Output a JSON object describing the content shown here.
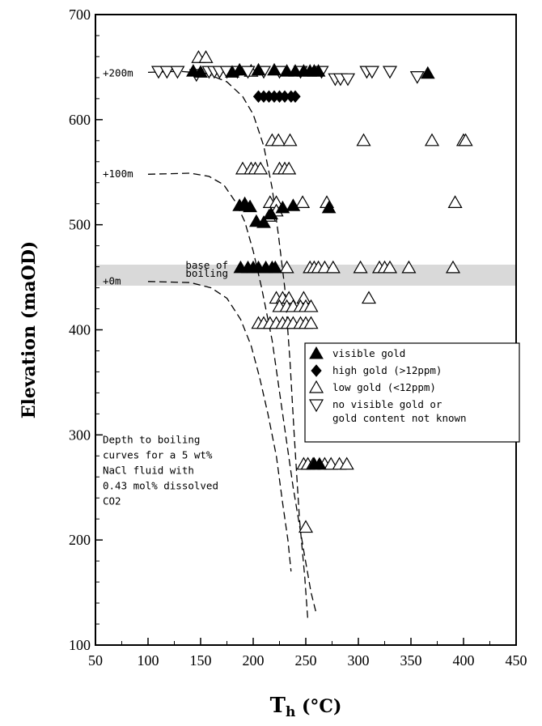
{
  "chart_data": {
    "type": "scatter",
    "xlabel_main": "T",
    "xlabel_sub": "h",
    "xlabel_unit": "(°C)",
    "ylabel": "Elevation (maOD)",
    "xlim": [
      50,
      450
    ],
    "ylim": [
      100,
      700
    ],
    "x_ticks": [
      "50",
      "100",
      "150",
      "200",
      "250",
      "300",
      "350",
      "400",
      "450"
    ],
    "y_ticks": [
      "100",
      "200",
      "300",
      "400",
      "500",
      "600",
      "700"
    ],
    "boiling_band": [
      442,
      462
    ],
    "boiling_band_label": [
      "base of",
      "boiling"
    ],
    "depth_labels": [
      {
        "text": "+200m",
        "elev": 645
      },
      {
        "text": "+100m",
        "elev": 549
      },
      {
        "text": "+0m",
        "elev": 447
      }
    ],
    "legend": [
      {
        "marker": "up-filled",
        "label": "visible gold"
      },
      {
        "marker": "diamond",
        "label": "high gold (>12ppm)"
      },
      {
        "marker": "up-open",
        "label": "low gold (<12ppm)"
      },
      {
        "marker": "down-open",
        "label": "no visible gold or",
        "label2": "gold content not known"
      }
    ],
    "note": [
      "Depth to boiling",
      "curves for a 5 wt%",
      "NaCl fluid with",
      "0.43 mol% dissolved",
      "CO2"
    ],
    "curves": [
      {
        "name": "+200m",
        "points": [
          [
            100,
            645
          ],
          [
            130,
            646
          ],
          [
            155,
            644
          ],
          [
            175,
            636
          ],
          [
            190,
            622
          ],
          [
            200,
            605
          ],
          [
            210,
            575
          ],
          [
            218,
            535
          ],
          [
            224,
            490
          ],
          [
            230,
            440
          ],
          [
            235,
            370
          ],
          [
            239,
            300
          ],
          [
            244,
            220
          ],
          [
            249,
            165
          ],
          [
            252,
            123
          ]
        ]
      },
      {
        "name": "+100m",
        "points": [
          [
            100,
            548
          ],
          [
            140,
            549
          ],
          [
            158,
            546
          ],
          [
            172,
            538
          ],
          [
            183,
            522
          ],
          [
            192,
            503
          ],
          [
            200,
            475
          ],
          [
            208,
            440
          ],
          [
            218,
            390
          ],
          [
            228,
            320
          ],
          [
            238,
            250
          ],
          [
            248,
            190
          ],
          [
            255,
            150
          ],
          [
            260,
            130
          ]
        ]
      },
      {
        "name": "+0m",
        "points": [
          [
            100,
            446
          ],
          [
            140,
            445
          ],
          [
            160,
            440
          ],
          [
            175,
            430
          ],
          [
            188,
            410
          ],
          [
            198,
            385
          ],
          [
            206,
            355
          ],
          [
            214,
            320
          ],
          [
            222,
            280
          ],
          [
            228,
            235
          ],
          [
            233,
            200
          ],
          [
            236,
            170
          ]
        ]
      }
    ],
    "series": [
      {
        "name": "visible gold",
        "marker": "up-filled",
        "points": [
          [
            143,
            646
          ],
          [
            150,
            645
          ],
          [
            180,
            645
          ],
          [
            187,
            647
          ],
          [
            205,
            647
          ],
          [
            220,
            647
          ],
          [
            232,
            646
          ],
          [
            240,
            646
          ],
          [
            248,
            646
          ],
          [
            254,
            646
          ],
          [
            258,
            646
          ],
          [
            262,
            646
          ],
          [
            366,
            644
          ],
          [
            187,
            518
          ],
          [
            192,
            520
          ],
          [
            197,
            517
          ],
          [
            203,
            503
          ],
          [
            210,
            502
          ],
          [
            217,
            510
          ],
          [
            228,
            516
          ],
          [
            238,
            518
          ],
          [
            272,
            516
          ],
          [
            188,
            459
          ],
          [
            195,
            459
          ],
          [
            200,
            459
          ],
          [
            205,
            459
          ],
          [
            212,
            459
          ],
          [
            218,
            459
          ],
          [
            221,
            459
          ],
          [
            258,
            272
          ],
          [
            263,
            272
          ]
        ]
      },
      {
        "name": "high gold (>12ppm)",
        "marker": "diamond",
        "points": [
          [
            205,
            622
          ],
          [
            210,
            622
          ],
          [
            215,
            622
          ],
          [
            220,
            622
          ],
          [
            225,
            622
          ],
          [
            230,
            622
          ],
          [
            236,
            622
          ],
          [
            240,
            622
          ]
        ]
      },
      {
        "name": "low gold (<12ppm)",
        "marker": "up-open",
        "points": [
          [
            148,
            659
          ],
          [
            155,
            659
          ],
          [
            198,
            646
          ],
          [
            218,
            580
          ],
          [
            224,
            580
          ],
          [
            235,
            580
          ],
          [
            305,
            580
          ],
          [
            370,
            580
          ],
          [
            400,
            580
          ],
          [
            402,
            580
          ],
          [
            190,
            553
          ],
          [
            198,
            553
          ],
          [
            202,
            553
          ],
          [
            207,
            553
          ],
          [
            225,
            553
          ],
          [
            230,
            553
          ],
          [
            234,
            553
          ],
          [
            216,
            521
          ],
          [
            222,
            521
          ],
          [
            247,
            521
          ],
          [
            270,
            521
          ],
          [
            392,
            521
          ],
          [
            215,
            508
          ],
          [
            222,
            513
          ],
          [
            232,
            459
          ],
          [
            254,
            459
          ],
          [
            258,
            459
          ],
          [
            262,
            459
          ],
          [
            268,
            459
          ],
          [
            276,
            459
          ],
          [
            302,
            459
          ],
          [
            320,
            459
          ],
          [
            325,
            459
          ],
          [
            330,
            459
          ],
          [
            348,
            459
          ],
          [
            390,
            459
          ],
          [
            222,
            430
          ],
          [
            228,
            430
          ],
          [
            234,
            430
          ],
          [
            248,
            430
          ],
          [
            310,
            430
          ],
          [
            225,
            422
          ],
          [
            232,
            422
          ],
          [
            238,
            422
          ],
          [
            245,
            422
          ],
          [
            250,
            422
          ],
          [
            255,
            422
          ],
          [
            205,
            406
          ],
          [
            210,
            406
          ],
          [
            216,
            406
          ],
          [
            222,
            406
          ],
          [
            228,
            406
          ],
          [
            233,
            406
          ],
          [
            238,
            406
          ],
          [
            245,
            406
          ],
          [
            250,
            406
          ],
          [
            255,
            406
          ],
          [
            248,
            272
          ],
          [
            252,
            272
          ],
          [
            257,
            272
          ],
          [
            268,
            272
          ],
          [
            274,
            272
          ],
          [
            282,
            272
          ],
          [
            289,
            272
          ],
          [
            250,
            212
          ]
        ]
      },
      {
        "name": "no visible gold or gold content not known",
        "marker": "down-open",
        "points": [
          [
            110,
            646
          ],
          [
            118,
            646
          ],
          [
            128,
            646
          ],
          [
            146,
            643
          ],
          [
            158,
            646
          ],
          [
            163,
            646
          ],
          [
            168,
            646
          ],
          [
            175,
            646
          ],
          [
            185,
            646
          ],
          [
            195,
            646
          ],
          [
            210,
            646
          ],
          [
            225,
            646
          ],
          [
            245,
            646
          ],
          [
            265,
            646
          ],
          [
            278,
            639
          ],
          [
            283,
            639
          ],
          [
            290,
            639
          ],
          [
            308,
            646
          ],
          [
            313,
            646
          ],
          [
            330,
            646
          ],
          [
            356,
            641
          ]
        ]
      }
    ]
  }
}
